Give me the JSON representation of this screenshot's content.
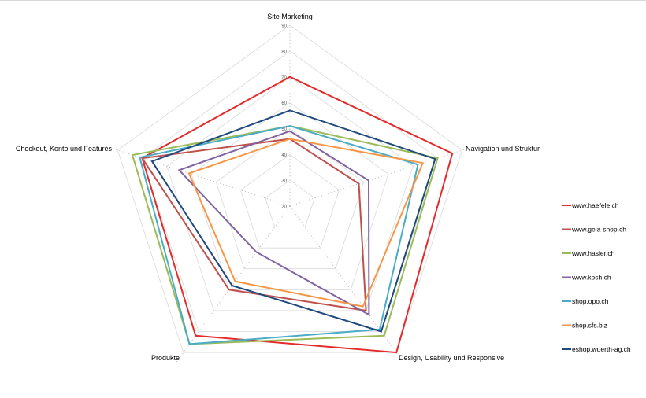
{
  "chart_data": {
    "type": "radar",
    "axes": [
      "Site Marketing",
      "Navigation und Struktur",
      "Design, Usability und Responsive",
      "Produkte",
      "Checkout, Konto und Features"
    ],
    "rlim": [
      20,
      90
    ],
    "rticks": [
      20,
      30,
      40,
      50,
      60,
      70,
      80,
      90
    ],
    "grid": true,
    "legend": "right",
    "series": [
      {
        "name": "www.haefele.ch",
        "color": "#e32b2b",
        "values": [
          70,
          86,
          90,
          82,
          80
        ]
      },
      {
        "name": "www.gela-shop.ch",
        "color": "#c0504d",
        "values": [
          46,
          48,
          70,
          60,
          80
        ]
      },
      {
        "name": "www.hasler.ch",
        "color": "#9bbb59",
        "values": [
          51,
          80,
          82,
          86,
          84
        ]
      },
      {
        "name": "www.koch.ch",
        "color": "#8064a2",
        "values": [
          49,
          52,
          72,
          42,
          65
        ]
      },
      {
        "name": "shop.opo.ch",
        "color": "#4bacc6",
        "values": [
          51,
          72,
          79,
          86,
          81
        ]
      },
      {
        "name": "shop.sfs.biz",
        "color": "#f79646",
        "values": [
          46,
          74,
          68,
          56,
          61
        ]
      },
      {
        "name": "eshop.wuerth-ag.ch",
        "color": "#1f497d",
        "values": [
          57,
          79,
          80,
          58,
          76
        ]
      }
    ]
  }
}
